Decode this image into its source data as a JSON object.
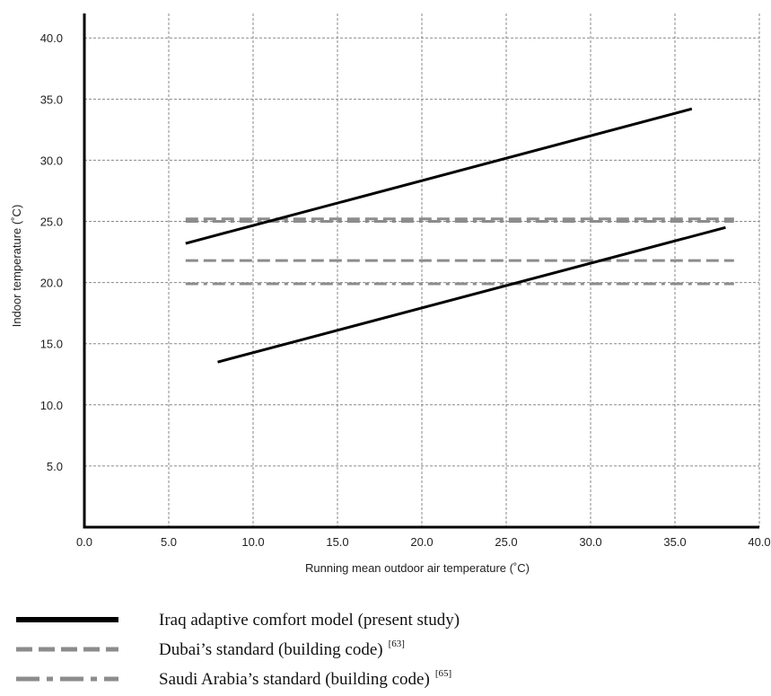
{
  "chart_data": {
    "type": "line",
    "xlabel": "Running mean outdoor air temperature (˚C)",
    "ylabel": "Indoor temperature (˚C)",
    "xlim": [
      0,
      40
    ],
    "ylim": [
      0,
      42
    ],
    "xticks": [
      0,
      5,
      10,
      15,
      20,
      25,
      30,
      35,
      40
    ],
    "yticks": [
      5,
      10,
      15,
      20,
      25,
      30,
      35,
      40
    ],
    "xtick_labels": [
      "0.0",
      "5.0",
      "10.0",
      "15.0",
      "20.0",
      "25.0",
      "30.0",
      "35.0",
      "40.0"
    ],
    "ytick_labels": [
      "5.0",
      "10.0",
      "15.0",
      "20.0",
      "25.0",
      "30.0",
      "35.0",
      "40.0"
    ],
    "grid": true,
    "series": [
      {
        "name": "Iraq adaptive comfort model (present study)",
        "style": "solid",
        "color": "#000000",
        "x": [
          6.0,
          36.0
        ],
        "y": [
          23.2,
          34.2
        ]
      },
      {
        "name": "Iraq adaptive comfort model (present study)",
        "style": "solid",
        "color": "#000000",
        "x": [
          7.9,
          38.0
        ],
        "y": [
          13.5,
          24.5
        ]
      },
      {
        "name": "Dubai's standard (building code)",
        "style": "dashed",
        "color": "#8c8c8c",
        "x": [
          6.0,
          38.5
        ],
        "y": [
          25.2,
          25.2
        ]
      },
      {
        "name": "Dubai's standard (building code)",
        "style": "dashed",
        "color": "#8c8c8c",
        "x": [
          6.0,
          38.5
        ],
        "y": [
          21.8,
          21.8
        ]
      },
      {
        "name": "Saudi Arabia's standard (building code)",
        "style": "dashdot",
        "color": "#8c8c8c",
        "x": [
          6.0,
          38.5
        ],
        "y": [
          25.0,
          25.0
        ]
      },
      {
        "name": "Saudi Arabia's standard (building code)",
        "style": "dashdot",
        "color": "#8c8c8c",
        "x": [
          6.0,
          38.5
        ],
        "y": [
          19.9,
          19.9
        ]
      }
    ],
    "legend": {
      "placement": "bottom",
      "entries": [
        {
          "label": "Iraq adaptive comfort model (present study)",
          "ref": "",
          "style": "solid"
        },
        {
          "label": "Dubai’s standard (building code)",
          "ref": "[63]",
          "style": "dashed"
        },
        {
          "label": "Saudi Arabia’s standard (building code)",
          "ref": "[65]",
          "style": "dashdot"
        }
      ]
    }
  }
}
